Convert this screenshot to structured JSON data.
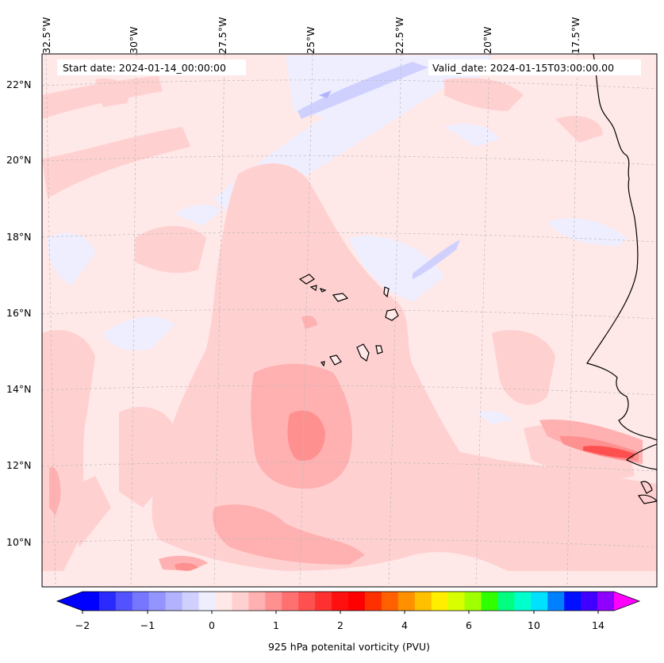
{
  "header": {
    "start_date": "Start date: 2024-01-14_00:00:00",
    "valid_date": "Valid_date: 2024-01-15T03:00:00.00"
  },
  "axes": {
    "lon_labels": [
      "32.5°W",
      "30°W",
      "27.5°W",
      "25°W",
      "22.5°W",
      "20°W",
      "17.5°W"
    ],
    "lat_labels": [
      "22°N",
      "20°N",
      "18°N",
      "16°N",
      "14°N",
      "12°N",
      "10°N"
    ]
  },
  "colorbar": {
    "label": "925 hPa potenital vorticity (PVU)",
    "tick_labels": [
      "−2",
      "−1",
      "0",
      "1",
      "2",
      "4",
      "6",
      "10",
      "14"
    ],
    "colors": [
      "#0000ff",
      "#2a2aff",
      "#5252ff",
      "#7676ff",
      "#9494ff",
      "#b2b2ff",
      "#d0d0ff",
      "#eeeeff",
      "#ffe8e8",
      "#ffd0d0",
      "#ffb0b0",
      "#ff9090",
      "#ff7070",
      "#ff5050",
      "#ff3030",
      "#ff1010",
      "#ff0000",
      "#ff3000",
      "#ff6000",
      "#ff9000",
      "#ffc000",
      "#ffee00",
      "#d8ff00",
      "#a0ff00",
      "#30ff00",
      "#00ff80",
      "#00ffcc",
      "#00e0ff",
      "#0080ff",
      "#0010ff",
      "#4000ff",
      "#9000ff"
    ]
  }
}
